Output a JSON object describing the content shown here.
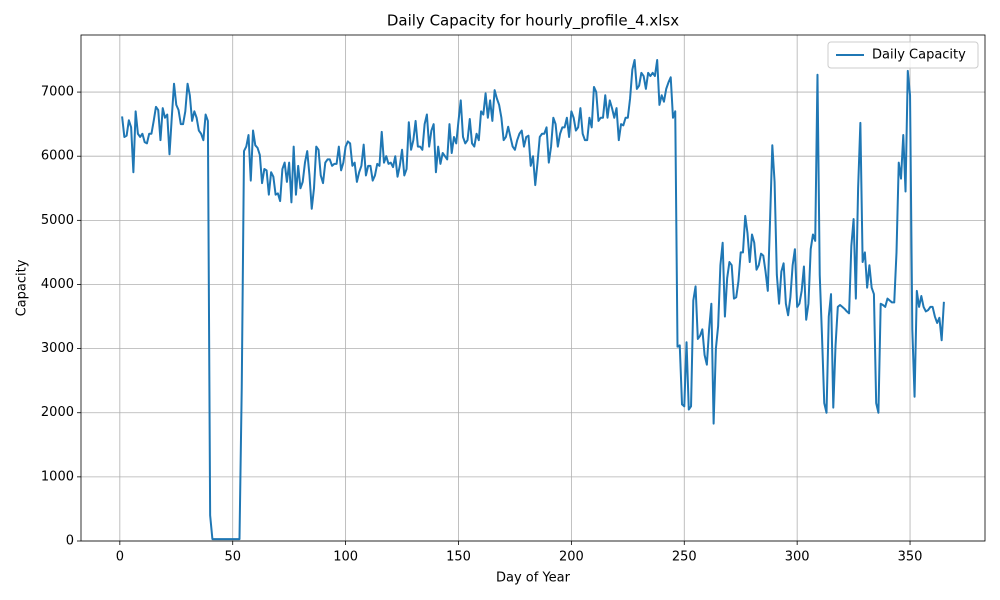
{
  "chart_data": {
    "type": "line",
    "title": "Daily Capacity for hourly_profile_4.xlsx",
    "x_label": "Day of Year",
    "y_label": "Capacity",
    "x": [
      1,
      2,
      3,
      4,
      5,
      6,
      7,
      8,
      9,
      10,
      11,
      12,
      13,
      14,
      15,
      16,
      17,
      18,
      19,
      20,
      21,
      22,
      23,
      24,
      25,
      26,
      27,
      28,
      29,
      30,
      31,
      32,
      33,
      34,
      35,
      36,
      37,
      38,
      39,
      40,
      41,
      42,
      43,
      44,
      45,
      46,
      47,
      48,
      49,
      50,
      51,
      52,
      53,
      54,
      55,
      56,
      57,
      58,
      59,
      60,
      61,
      62,
      63,
      64,
      65,
      66,
      67,
      68,
      69,
      70,
      71,
      72,
      73,
      74,
      75,
      76,
      77,
      78,
      79,
      80,
      81,
      82,
      83,
      84,
      85,
      86,
      87,
      88,
      89,
      90,
      91,
      92,
      93,
      94,
      95,
      96,
      97,
      98,
      99,
      100,
      101,
      102,
      103,
      104,
      105,
      106,
      107,
      108,
      109,
      110,
      111,
      112,
      113,
      114,
      115,
      116,
      117,
      118,
      119,
      120,
      121,
      122,
      123,
      124,
      125,
      126,
      127,
      128,
      129,
      130,
      131,
      132,
      133,
      134,
      135,
      136,
      137,
      138,
      139,
      140,
      141,
      142,
      143,
      144,
      145,
      146,
      147,
      148,
      149,
      150,
      151,
      152,
      153,
      154,
      155,
      156,
      157,
      158,
      159,
      160,
      161,
      162,
      163,
      164,
      165,
      166,
      167,
      168,
      169,
      170,
      171,
      172,
      173,
      174,
      175,
      176,
      177,
      178,
      179,
      180,
      181,
      182,
      183,
      184,
      185,
      186,
      187,
      188,
      189,
      190,
      191,
      192,
      193,
      194,
      195,
      196,
      197,
      198,
      199,
      200,
      201,
      202,
      203,
      204,
      205,
      206,
      207,
      208,
      209,
      210,
      211,
      212,
      213,
      214,
      215,
      216,
      217,
      218,
      219,
      220,
      221,
      222,
      223,
      224,
      225,
      226,
      227,
      228,
      229,
      230,
      231,
      232,
      233,
      234,
      235,
      236,
      237,
      238,
      239,
      240,
      241,
      242,
      243,
      244,
      245,
      246,
      247,
      248,
      249,
      250,
      251,
      252,
      253,
      254,
      255,
      256,
      257,
      258,
      259,
      260,
      261,
      262,
      263,
      264,
      265,
      266,
      267,
      268,
      269,
      270,
      271,
      272,
      273,
      274,
      275,
      276,
      277,
      278,
      279,
      280,
      281,
      282,
      283,
      284,
      285,
      286,
      287,
      288,
      289,
      290,
      291,
      292,
      293,
      294,
      295,
      296,
      297,
      298,
      299,
      300,
      301,
      302,
      303,
      304,
      305,
      306,
      307,
      308,
      309,
      310,
      311,
      312,
      313,
      314,
      315,
      316,
      317,
      318,
      319,
      320,
      321,
      322,
      323,
      324,
      325,
      326,
      327,
      328,
      329,
      330,
      331,
      332,
      333,
      334,
      335,
      336,
      337,
      338,
      339,
      340,
      341,
      342,
      343,
      344,
      345,
      346,
      347,
      348,
      349,
      350,
      351,
      352,
      353,
      354,
      355,
      356,
      357,
      358,
      359,
      360,
      361,
      362,
      363,
      364,
      365
    ],
    "series": [
      {
        "name": "Daily Capacity",
        "color": "#1f77b4",
        "values": [
          6620,
          6300,
          6320,
          6560,
          6450,
          5750,
          6700,
          6350,
          6300,
          6350,
          6220,
          6200,
          6350,
          6350,
          6550,
          6770,
          6720,
          6250,
          6750,
          6600,
          6650,
          6030,
          6600,
          7130,
          6800,
          6720,
          6500,
          6500,
          6700,
          7130,
          6950,
          6550,
          6700,
          6600,
          6400,
          6350,
          6250,
          6650,
          6550,
          400,
          30,
          30,
          30,
          30,
          30,
          30,
          30,
          30,
          30,
          30,
          30,
          30,
          30,
          2400,
          6080,
          6150,
          6330,
          5620,
          6400,
          6170,
          6130,
          6020,
          5580,
          5800,
          5780,
          5400,
          5750,
          5680,
          5400,
          5420,
          5300,
          5800,
          5900,
          5600,
          5900,
          5280,
          6150,
          5400,
          5850,
          5500,
          5600,
          5900,
          6080,
          5700,
          5180,
          5500,
          6150,
          6100,
          5700,
          5580,
          5900,
          5950,
          5950,
          5850,
          5880,
          5880,
          6150,
          5780,
          5900,
          6150,
          6230,
          6200,
          5850,
          5900,
          5600,
          5750,
          5850,
          6180,
          5700,
          5850,
          5850,
          5620,
          5700,
          5880,
          5850,
          6380,
          5900,
          6000,
          5880,
          5900,
          5830,
          6000,
          5680,
          5850,
          6100,
          5700,
          5800,
          6530,
          6100,
          6250,
          6550,
          6150,
          6150,
          6100,
          6500,
          6650,
          6150,
          6400,
          6500,
          5750,
          6150,
          5880,
          6050,
          6000,
          5950,
          6500,
          6050,
          6300,
          6200,
          6550,
          6870,
          6300,
          6200,
          6250,
          6580,
          6200,
          6150,
          6350,
          6250,
          6700,
          6650,
          6980,
          6600,
          6870,
          6550,
          7030,
          6900,
          6800,
          6600,
          6250,
          6300,
          6460,
          6300,
          6150,
          6100,
          6250,
          6350,
          6400,
          6150,
          6300,
          6320,
          5850,
          6000,
          5550,
          5900,
          6300,
          6350,
          6350,
          6450,
          5900,
          6150,
          6600,
          6500,
          6150,
          6350,
          6450,
          6450,
          6600,
          6300,
          6700,
          6600,
          6400,
          6450,
          6750,
          6350,
          6250,
          6250,
          6600,
          6450,
          7080,
          7000,
          6550,
          6600,
          6600,
          6950,
          6600,
          6870,
          6750,
          6600,
          6750,
          6250,
          6500,
          6480,
          6600,
          6600,
          6900,
          7350,
          7500,
          7050,
          7100,
          7300,
          7250,
          7050,
          7300,
          7250,
          7300,
          7250,
          7500,
          6800,
          6950,
          6850,
          7050,
          7150,
          7230,
          6600,
          6700,
          3030,
          3050,
          2130,
          2100,
          3100,
          2050,
          2100,
          3750,
          3970,
          3150,
          3200,
          3300,
          2900,
          2750,
          3300,
          3700,
          1830,
          3000,
          3350,
          4300,
          4650,
          3500,
          4100,
          4350,
          4300,
          3780,
          3800,
          4050,
          4500,
          4500,
          5070,
          4800,
          4350,
          4780,
          4650,
          4230,
          4300,
          4480,
          4450,
          4200,
          3900,
          5000,
          6170,
          5600,
          4150,
          3700,
          4200,
          4330,
          3700,
          3520,
          3800,
          4300,
          4550,
          3650,
          3700,
          3900,
          4280,
          3450,
          3700,
          4550,
          4780,
          4680,
          7270,
          4150,
          3200,
          2150,
          2000,
          3500,
          3850,
          2080,
          3050,
          3650,
          3680,
          3650,
          3620,
          3580,
          3550,
          4600,
          5020,
          3780,
          5500,
          6520,
          4350,
          4500,
          3950,
          4300,
          3950,
          3850,
          2150,
          2000,
          3700,
          3680,
          3650,
          3780,
          3750,
          3720,
          3720,
          4500,
          5900,
          5650,
          6330,
          5450,
          7330,
          6950,
          3300,
          2250,
          3900,
          3650,
          3820,
          3650,
          3580,
          3600,
          3650,
          3650,
          3500,
          3400,
          3480,
          3130,
          3730
        ]
      }
    ],
    "xlim": [
      -17.2,
      383.2
    ],
    "xticks": [
      0,
      50,
      100,
      150,
      200,
      250,
      300,
      350
    ],
    "ylim": [
      0,
      7890
    ],
    "yticks": [
      0,
      1000,
      2000,
      3000,
      4000,
      5000,
      6000,
      7000
    ],
    "grid": true,
    "legend": "upper right"
  }
}
